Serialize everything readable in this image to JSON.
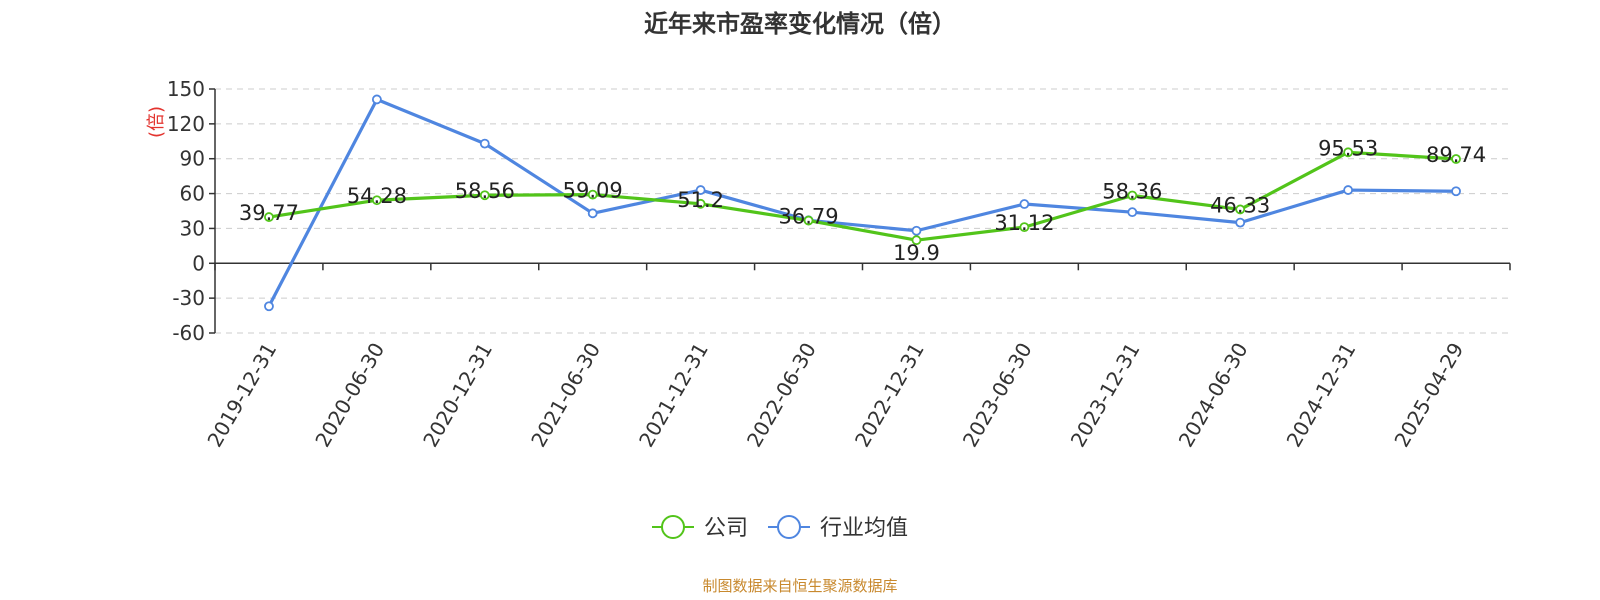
{
  "chart_data": {
    "type": "line",
    "title": "近年来市盈率变化情况（倍）",
    "ylabel": "(倍)",
    "xlabel": "",
    "ylim": [
      -60,
      150
    ],
    "yticks": [
      -60,
      -30,
      0,
      30,
      60,
      90,
      120,
      150
    ],
    "grid": true,
    "legend_position": "bottom",
    "categories": [
      "2019-12-31",
      "2020-06-30",
      "2020-12-31",
      "2021-06-30",
      "2021-12-31",
      "2022-06-30",
      "2022-12-31",
      "2023-06-30",
      "2023-12-31",
      "2024-06-30",
      "2024-12-31",
      "2025-04-29"
    ],
    "series": [
      {
        "name": "公司",
        "color": "#52c41a",
        "values": [
          39.77,
          54.28,
          58.56,
          59.09,
          51.2,
          36.79,
          19.9,
          31.12,
          58.36,
          46.33,
          95.53,
          89.74
        ],
        "labels": [
          "39.77",
          "54.28",
          "58.56",
          "59.09",
          "51.2",
          "36.79",
          "19.9",
          "31.12",
          "58.36",
          "46.33",
          "95.53",
          "89.74"
        ]
      },
      {
        "name": "行业均值",
        "color": "#4f86e0",
        "values": [
          -37,
          141,
          103,
          43,
          63,
          37,
          28,
          51,
          44,
          35,
          63,
          62
        ]
      }
    ],
    "source": "制图数据来自恒生聚源数据库"
  }
}
